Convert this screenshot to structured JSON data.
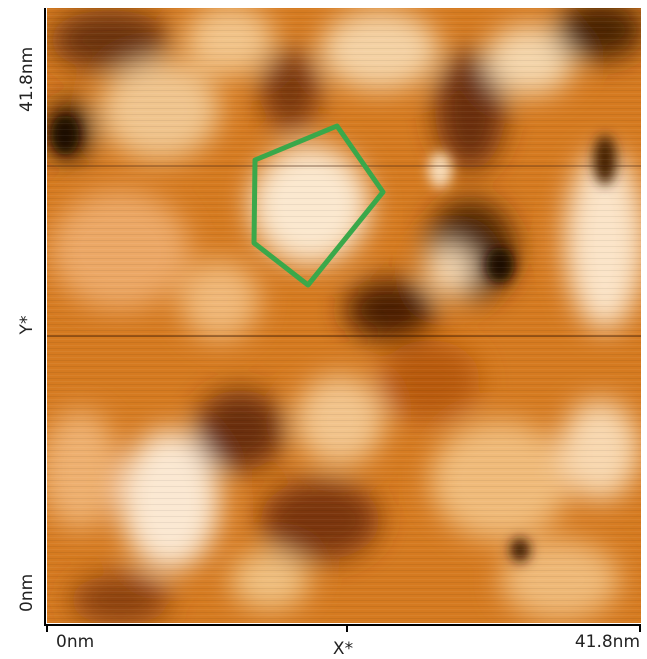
{
  "x_axis": {
    "start": "0nm",
    "label": "X*",
    "end": "41.8nm"
  },
  "y_axis": {
    "start": "0nm",
    "label": "Y*",
    "end": "41.8nm"
  }
}
